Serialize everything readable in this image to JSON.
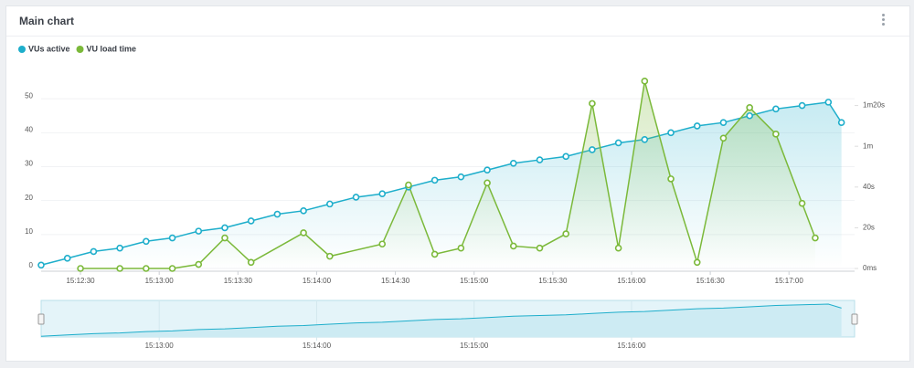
{
  "header": {
    "title": "Main chart"
  },
  "chart_data": {
    "type": "line",
    "xlim": [
      "15:12:15",
      "15:17:25"
    ],
    "xticks": [
      "15:12:30",
      "15:13:00",
      "15:13:30",
      "15:14:00",
      "15:14:30",
      "15:15:00",
      "15:15:30",
      "15:16:00",
      "15:16:30",
      "15:17:00"
    ],
    "ylim": [
      0,
      60
    ],
    "yticks": [
      0,
      10,
      20,
      30,
      40,
      50
    ],
    "y2lim": [
      0,
      100
    ],
    "y2ticks": [
      {
        "value": 0,
        "label": "0ms"
      },
      {
        "value": 20,
        "label": "20s"
      },
      {
        "value": 40,
        "label": "40s"
      },
      {
        "value": 60,
        "label": "1m"
      },
      {
        "value": 80,
        "label": "1m20s"
      }
    ],
    "series": [
      {
        "name": "VUs active",
        "color": "#1eaecb",
        "x": [
          "15:12:15",
          "15:12:25",
          "15:12:35",
          "15:12:45",
          "15:12:55",
          "15:13:05",
          "15:13:15",
          "15:13:25",
          "15:13:35",
          "15:13:45",
          "15:13:55",
          "15:14:05",
          "15:14:15",
          "15:14:25",
          "15:14:35",
          "15:14:45",
          "15:14:55",
          "15:15:05",
          "15:15:15",
          "15:15:25",
          "15:15:35",
          "15:15:45",
          "15:15:55",
          "15:16:05",
          "15:16:15",
          "15:16:25",
          "15:16:35",
          "15:16:45",
          "15:16:55",
          "15:17:05",
          "15:17:15",
          "15:17:20"
        ],
        "values": [
          1,
          3,
          5,
          6,
          8,
          9,
          11,
          12,
          14,
          16,
          17,
          19,
          21,
          22,
          24,
          26,
          27,
          29,
          31,
          32,
          33,
          35,
          37,
          38,
          40,
          42,
          43,
          45,
          47,
          48,
          49,
          43
        ]
      },
      {
        "name": "VU load time",
        "color": "#7bb93a",
        "axis": "y2",
        "x": [
          "15:12:30",
          "15:12:45",
          "15:12:55",
          "15:13:05",
          "15:13:15",
          "15:13:25",
          "15:13:35",
          "15:13:55",
          "15:14:05",
          "15:14:25",
          "15:14:35",
          "15:14:45",
          "15:14:55",
          "15:15:05",
          "15:15:15",
          "15:15:25",
          "15:15:35",
          "15:15:45",
          "15:15:55",
          "15:16:05",
          "15:16:15",
          "15:16:25",
          "15:16:35",
          "15:16:45",
          "15:16:55",
          "15:17:05",
          "15:17:10"
        ],
        "values": [
          0,
          0,
          0,
          0,
          2,
          15,
          3,
          17.5,
          6,
          12,
          41,
          7,
          10,
          42,
          11,
          10,
          17,
          81,
          10,
          92,
          44,
          3,
          64,
          79,
          66,
          32,
          15
        ]
      }
    ],
    "navigator_xticks": [
      "15:13:00",
      "15:14:00",
      "15:15:00",
      "15:16:00"
    ]
  }
}
